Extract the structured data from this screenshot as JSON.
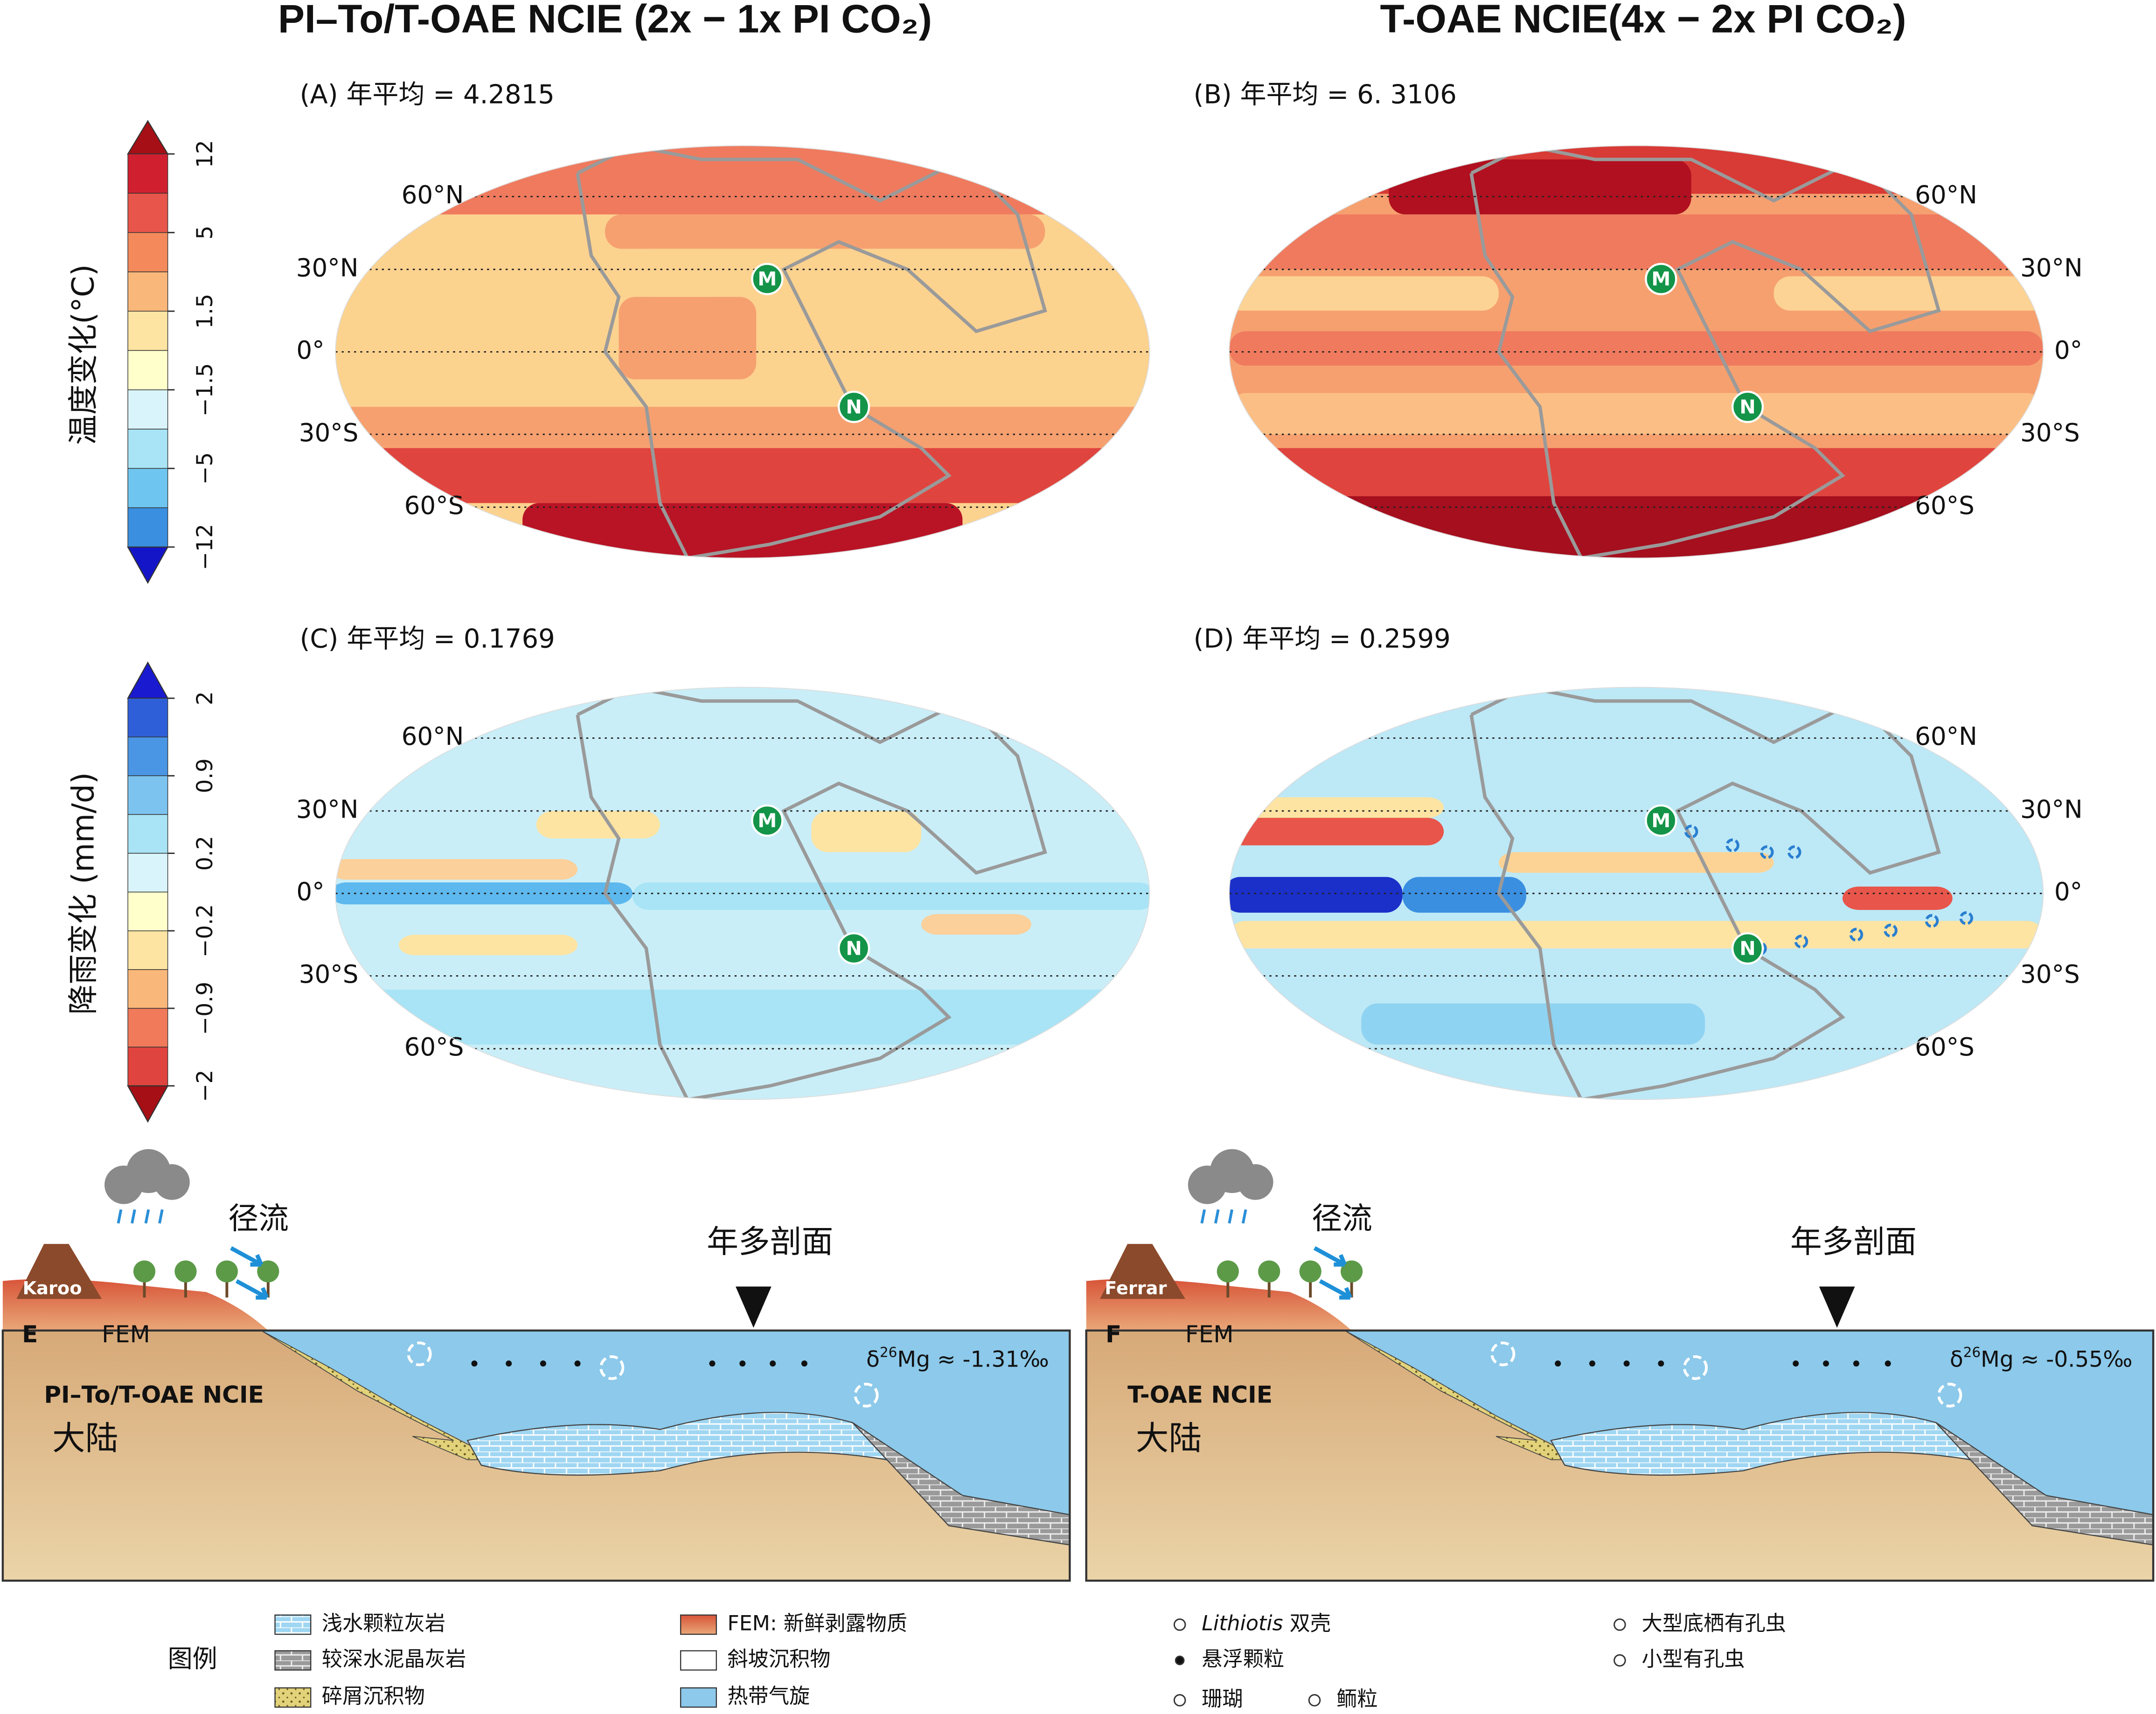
{
  "columns": [
    {
      "title": "PI–To/T-OAE NCIE (2x − 1x PI CO₂)"
    },
    {
      "title": "T-OAE NCIE(4x − 2x PI CO₂)"
    }
  ],
  "colorbars": [
    {
      "label": "温度变化(°C)",
      "ticks": [
        "12",
        "5",
        "1.5",
        "−1.5",
        "−5",
        "−12"
      ]
    },
    {
      "label": "降雨变化 (mm/d)",
      "ticks": [
        "2",
        "0.9",
        "0.2",
        "−0.2",
        "−0.9",
        "−2"
      ]
    }
  ],
  "panels": [
    {
      "label": "(A) 年平均 = 4.2815"
    },
    {
      "label": "(B) 年平均 = 6. 3106"
    },
    {
      "label": "(C) 年平均 = 0.1769"
    },
    {
      "label": "(D) 年平均 = 0.2599"
    }
  ],
  "latitudes": [
    "60°N",
    "30°N",
    "0°",
    "30°S",
    "60°S"
  ],
  "sites": [
    "M",
    "N"
  ],
  "sections": [
    {
      "letter": "E",
      "volcano": "Karoo",
      "fem": "FEM",
      "name": "PI–To/T-OAE NCIE",
      "continent": "大陆",
      "runoff": "径流",
      "profile": "年多剖面",
      "delta": {
        "symbol": "δ",
        "isotope": "26",
        "rest": "Mg ≈ -1.31‰"
      }
    },
    {
      "letter": "F",
      "volcano": "Ferrar",
      "fem": "FEM",
      "name": "T-OAE NCIE",
      "continent": "大陆",
      "runoff": "径流",
      "profile": "年多剖面",
      "delta": {
        "symbol": "δ",
        "isotope": "26",
        "rest": "Mg ≈ -0.55‰"
      }
    }
  ],
  "legend": {
    "title": "图例",
    "items": [
      {
        "text": "浅水颗粒灰岩"
      },
      {
        "text": "较深水泥晶灰岩"
      },
      {
        "text": "碎屑沉积物"
      },
      {
        "text": "FEM: 新鲜剥露物质"
      },
      {
        "text": "斜坡沉积物"
      },
      {
        "text": "热带气旋"
      },
      {
        "italic": "Lithiotis",
        "text": " 双壳"
      },
      {
        "text": "悬浮颗粒"
      },
      {
        "text": "珊瑚"
      },
      {
        "text": "鲕粒"
      },
      {
        "text": "大型底栖有孔虫"
      },
      {
        "text": "小型有孔虫"
      }
    ]
  }
}
